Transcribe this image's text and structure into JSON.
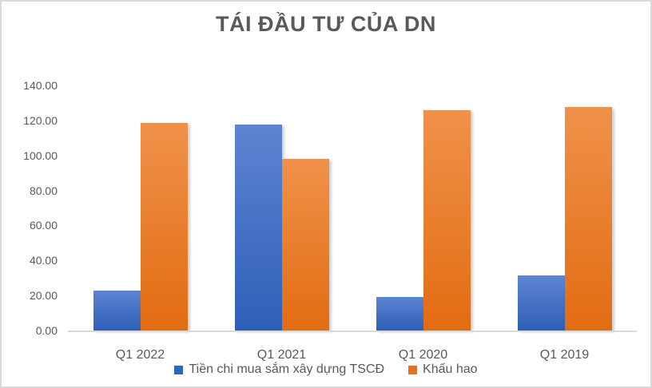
{
  "chart": {
    "title": "TÁI ĐẦU TƯ CỦA DN"
  },
  "chart_data": {
    "type": "bar",
    "title": "TÁI ĐẦU TƯ CỦA DN",
    "categories": [
      "Q1 2022",
      "Q1 2021",
      "Q1 2020",
      "Q1 2019"
    ],
    "series": [
      {
        "name": "Tiền chi mua sắm xây dựng TSCĐ",
        "values": [
          23,
          117.5,
          19,
          31.5
        ],
        "color": "#3465BC",
        "gradient_top": "#5d84d2",
        "gradient_bottom": "#2e5fb7"
      },
      {
        "name": "Khấu hao",
        "values": [
          118.5,
          98,
          126,
          127.5
        ],
        "color": "#E8721C",
        "gradient_top": "#f0914a",
        "gradient_bottom": "#e26c12"
      }
    ],
    "xlabel": "",
    "ylabel": "",
    "ylim": [
      0,
      140
    ],
    "ytick_step": 20,
    "ytick_labels": [
      "0.00",
      "20.00",
      "40.00",
      "60.00",
      "80.00",
      "100.00",
      "120.00",
      "140.00"
    ],
    "grid": false,
    "legend_position": "bottom"
  },
  "colors": {
    "title_text": "#595959",
    "axis_text": "#595959",
    "baseline": "#d9d9d9",
    "background": "#ffffff",
    "border": "#d9d9d9"
  }
}
